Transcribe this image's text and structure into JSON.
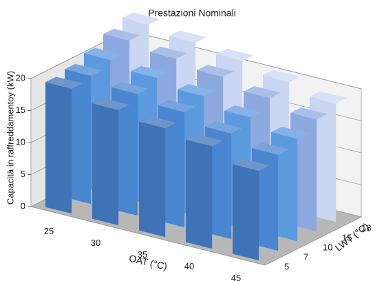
{
  "chart_data": {
    "type": "bar3d",
    "title": "Prestazioni Nominali",
    "ylabel": "Capacità in raffreddamentoy (kW)",
    "xlabel": "OAT (°C)",
    "series_label": "LWT (°C)",
    "categories": [
      "25",
      "30",
      "35",
      "40",
      "45"
    ],
    "series": [
      {
        "name": "5",
        "color": "#3f73b8",
        "values": [
          19.5,
          18,
          17,
          16,
          14
        ]
      },
      {
        "name": "7",
        "color": "#4a86d0",
        "values": [
          20,
          19,
          18,
          16.5,
          15
        ]
      },
      {
        "name": "10",
        "color": "#5c9ae0",
        "values": [
          21,
          20,
          19,
          17.5,
          16
        ]
      },
      {
        "name": "15",
        "color": "#8ea9e0",
        "values": [
          22.5,
          21.5,
          20.5,
          19,
          17.5
        ]
      },
      {
        "name": "18",
        "color": "#cbd7f2",
        "values": [
          23.5,
          22.5,
          21.5,
          20,
          18.5
        ]
      }
    ],
    "ylim": [
      0,
      20
    ],
    "yticks": [
      0,
      5,
      10,
      15,
      20
    ],
    "grid": true
  }
}
